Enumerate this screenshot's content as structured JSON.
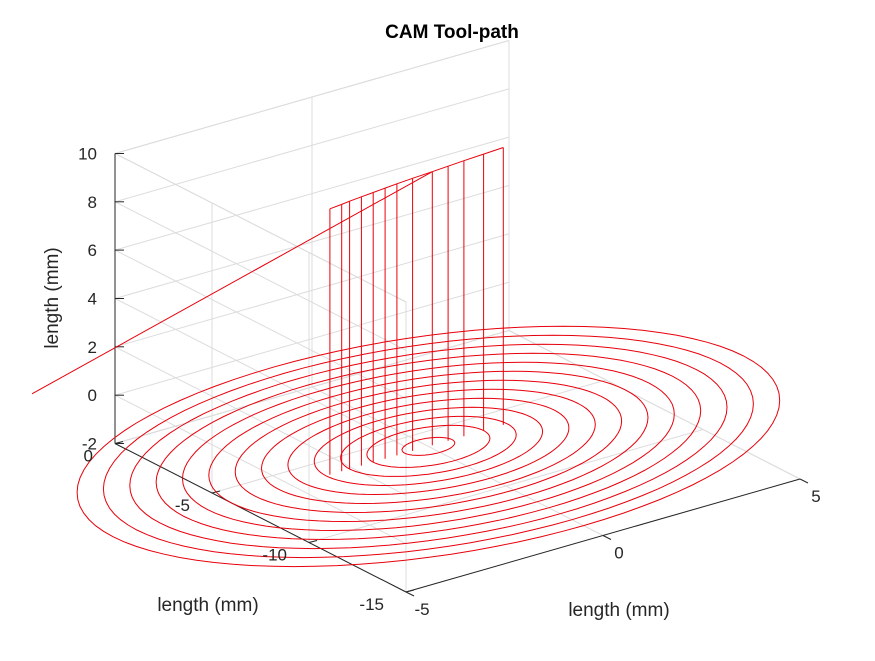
{
  "chart_data": {
    "type": "line",
    "projection": "3d",
    "title": "CAM Tool-path",
    "xlabel": "length (mm)",
    "ylabel": "length (mm)",
    "zlabel": "length (mm)",
    "xlim": [
      -5,
      5
    ],
    "ylim": [
      -15,
      0
    ],
    "zlim": [
      -2,
      10
    ],
    "xticks": [
      "-5",
      "0",
      "5"
    ],
    "yticks": [
      "-15",
      "-10",
      "-5",
      "0"
    ],
    "zticks": [
      "-2",
      "0",
      "2",
      "4",
      "6",
      "8",
      "10"
    ],
    "grid": true,
    "colors": {
      "path": "#e8000b",
      "grid": "#dcdcdc",
      "axis": "#262626"
    },
    "series": [
      {
        "path_model": "concentric circular passes at depth -2, retract vertically to z=9",
        "center": [
          0,
          -6
        ],
        "depth": -2,
        "radii": [
          0.6,
          1.4,
          2.0,
          2.6,
          3.2,
          3.8,
          4.4,
          5.0,
          5.6,
          6.2,
          6.8,
          7.4,
          8.0
        ],
        "start_x": [
          -2.5,
          -2.2,
          -2.0,
          -1.7,
          -1.4,
          -1.1,
          -0.8,
          -0.4,
          0.1,
          0.5,
          0.9,
          1.4,
          1.9
        ],
        "retract_z": 9,
        "rapid_to": [
          -14,
          -14,
          10
        ]
      }
    ]
  }
}
